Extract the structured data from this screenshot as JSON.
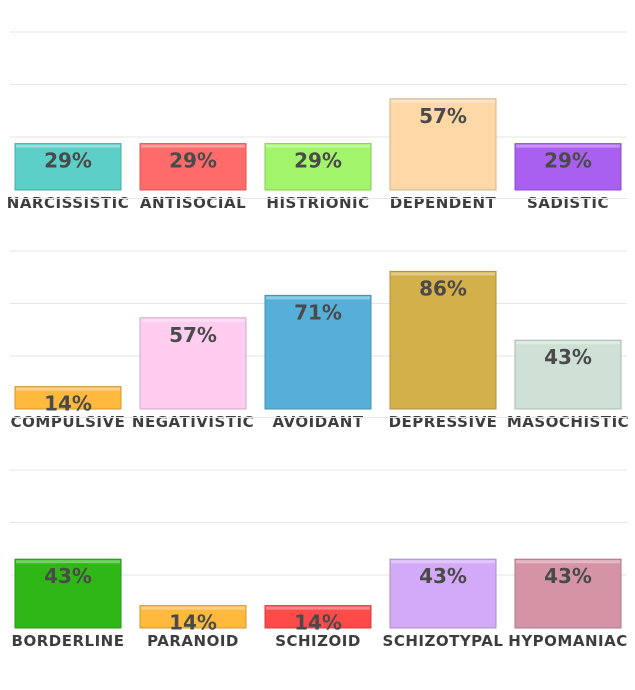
{
  "chart_data": [
    {
      "type": "bar",
      "categories": [
        "NARCISSISTIC",
        "ANTISOCIAL",
        "HISTRIONIC",
        "DEPENDENT",
        "SADISTIC"
      ],
      "values": [
        29,
        29,
        29,
        57,
        29
      ],
      "value_labels": [
        "29%",
        "29%",
        "29%",
        "57%",
        "29%"
      ],
      "colors": [
        "#5ccfc8",
        "#ff6b6b",
        "#a2f56a",
        "#ffd8a8",
        "#a95ff0"
      ],
      "ylim": [
        0,
        100
      ],
      "grid": true
    },
    {
      "type": "bar",
      "categories": [
        "COMPULSIVE",
        "NEGATIVISTIC",
        "AVOIDANT",
        "DEPRESSIVE",
        "MASOCHISTIC"
      ],
      "values": [
        14,
        57,
        71,
        86,
        43
      ],
      "value_labels": [
        "14%",
        "57%",
        "71%",
        "86%",
        "43%"
      ],
      "colors": [
        "#ffb93d",
        "#ffcdf0",
        "#55afd8",
        "#d4b04a",
        "#cfe1d6"
      ],
      "ylim": [
        0,
        100
      ],
      "grid": true
    },
    {
      "type": "bar",
      "categories": [
        "BORDERLINE",
        "PARANOID",
        "SCHIZOID",
        "SCHIZOTYPAL",
        "HYPOMANIAC"
      ],
      "values": [
        43,
        14,
        14,
        43,
        43
      ],
      "value_labels": [
        "43%",
        "14%",
        "14%",
        "43%",
        "43%"
      ],
      "colors": [
        "#2fb716",
        "#ffb93d",
        "#ff4a4a",
        "#d2aaf7",
        "#d494a6"
      ],
      "ylim": [
        0,
        100
      ],
      "grid": true
    }
  ]
}
